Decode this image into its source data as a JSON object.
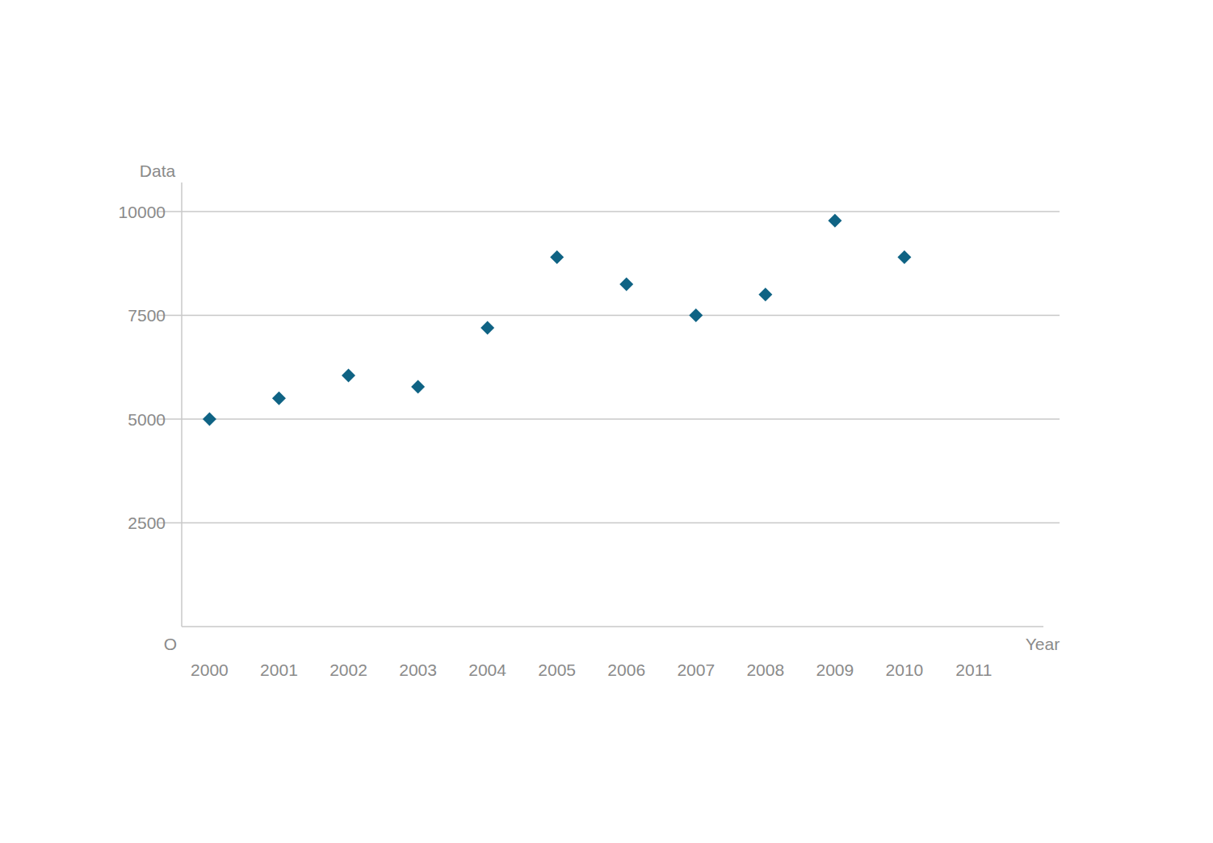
{
  "chart_data": {
    "type": "scatter",
    "x_label": "Year",
    "y_label": "Data",
    "x": [
      2000,
      2001,
      2002,
      2003,
      2004,
      2005,
      2006,
      2007,
      2008,
      2009,
      2010
    ],
    "values": [
      5000,
      5500,
      6050,
      5780,
      7200,
      8900,
      8250,
      7500,
      8000,
      9780,
      8900
    ],
    "color": "#0f6384",
    "marker": "diamond",
    "xlim": [
      1999.6,
      2012
    ],
    "xticks": [
      2000,
      2001,
      2002,
      2003,
      2004,
      2005,
      2006,
      2007,
      2008,
      2009,
      2010,
      2011
    ],
    "ylim": [
      0,
      10700
    ],
    "yticks": [
      {
        "value": 0,
        "label": "O"
      },
      2500,
      5000,
      7500,
      10000
    ],
    "grid": true
  }
}
